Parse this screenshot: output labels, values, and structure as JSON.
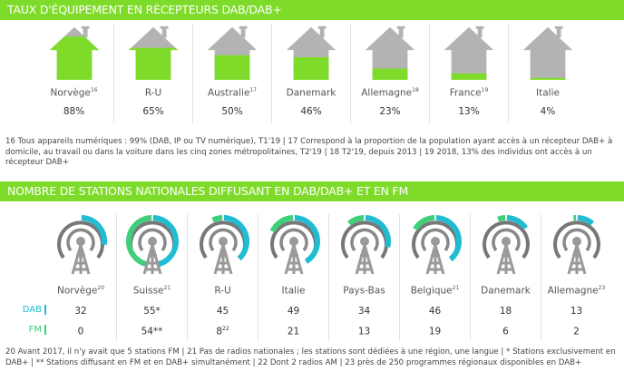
{
  "section1": {
    "title": "TAUX D'ÉQUIPEMENT EN RÉCEPTEURS DAB/DAB+",
    "items": [
      {
        "name": "Norvège",
        "sup": "16",
        "value": "88%",
        "pct": 88
      },
      {
        "name": "R-U",
        "sup": "",
        "value": "65%",
        "pct": 65
      },
      {
        "name": "Australie",
        "sup": "17",
        "value": "50%",
        "pct": 50
      },
      {
        "name": "Danemark",
        "sup": "",
        "value": "46%",
        "pct": 46
      },
      {
        "name": "Allemagne",
        "sup": "18",
        "value": "23%",
        "pct": 23
      },
      {
        "name": "France",
        "sup": "19",
        "value": "13%",
        "pct": 13
      },
      {
        "name": "Italie",
        "sup": "",
        "value": "4%",
        "pct": 4
      }
    ],
    "note": "16 Tous appareils numériques : 99% (DAB, IP ou TV numérique), T1'19 | 17 Correspond à la proportion de la population ayant accès à un récepteur DAB+ à domicile, au travail ou dans la voiture dans les cinq zones métropolitaines, T2'19 | 18 T2'19, depuis 2013 | 19 2018, 13% des individus ont accès à un récepteur DAB+"
  },
  "section2": {
    "title": "NOMBRE DE STATIONS NATIONALES DIFFUSANT EN DAB/DAB+ ET EN FM",
    "dab_label": "DAB",
    "fm_label": "FM",
    "items": [
      {
        "name": "Norvège",
        "sup": "20",
        "dab": "32",
        "fm": "0",
        "dab_n": 32,
        "fm_n": 0,
        "fm_sup": ""
      },
      {
        "name": "Suisse",
        "sup": "21",
        "dab": "55*",
        "fm": "54**",
        "dab_n": 55,
        "fm_n": 54,
        "fm_sup": ""
      },
      {
        "name": "R-U",
        "sup": "",
        "dab": "45",
        "fm": "8",
        "dab_n": 45,
        "fm_n": 8,
        "fm_sup": "22"
      },
      {
        "name": "Italie",
        "sup": "",
        "dab": "49",
        "fm": "21",
        "dab_n": 49,
        "fm_n": 21,
        "fm_sup": ""
      },
      {
        "name": "Pays-Bas",
        "sup": "",
        "dab": "34",
        "fm": "13",
        "dab_n": 34,
        "fm_n": 13,
        "fm_sup": ""
      },
      {
        "name": "Belgique",
        "sup": "21",
        "dab": "46",
        "fm": "19",
        "dab_n": 46,
        "fm_n": 19,
        "fm_sup": ""
      },
      {
        "name": "Danemark",
        "sup": "",
        "dab": "18",
        "fm": "6",
        "dab_n": 18,
        "fm_n": 6,
        "fm_sup": ""
      },
      {
        "name": "Allemagne",
        "sup": "23",
        "dab": "13",
        "fm": "2",
        "dab_n": 13,
        "fm_n": 2,
        "fm_sup": ""
      }
    ],
    "note": "20 Avant 2017, il n'y avait que 5 stations FM | 21 Pas de radios nationales ; les stations sont dédiées à une région, une langue | * Stations exclusivement en DAB+ | ** Stations diffusant en FM et en DAB+ simultanément | 22 Dont 2 radios AM | 23 près de 250 programmes régionaux disponibles en DAB+"
  },
  "colors": {
    "green": "#7fdb2a",
    "house_gray": "#b3b3b3",
    "dab": "#1fbcd2",
    "fm": "#3fcf7a",
    "tower": "#9a9a9a"
  }
}
